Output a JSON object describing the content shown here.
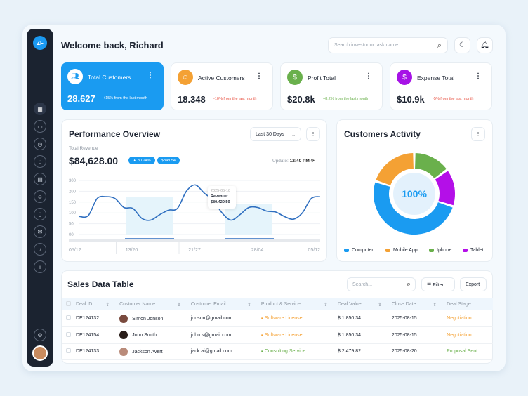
{
  "logo": "ZF",
  "header": {
    "title": "Welcome back, Richard",
    "search_placeholder": "Search investor or task name"
  },
  "sidebar": {
    "items": [
      "dashboard-icon",
      "wallet-icon",
      "clock-icon",
      "bag-icon",
      "calendar-icon",
      "users-icon",
      "document-icon",
      "mail-icon",
      "bell-icon",
      "info-icon"
    ],
    "settings": "gear-icon"
  },
  "cards": [
    {
      "label": "Total Customers",
      "value": "28.627",
      "change": "+15% from the last month",
      "color": "#1a9bf1",
      "icon": "users-icon"
    },
    {
      "label": "Active Customers",
      "value": "18.348",
      "change": "-10% from the last month",
      "color": "#f4a134",
      "icon": "user-check-icon"
    },
    {
      "label": "Profit Total",
      "value": "$20.8k",
      "change": "+8.2% from the last month",
      "color": "#6ab04c",
      "icon": "dollar-icon"
    },
    {
      "label": "Expense Total",
      "value": "$10.9k",
      "change": "-5% from the last month",
      "color": "#a612e6",
      "icon": "dollar-icon"
    }
  ],
  "performance": {
    "title": "Performance Overview",
    "range": "Last 30 Days",
    "subtitle": "Total Revenue",
    "total": "$84,628.00",
    "pct": "▲ 30.24%",
    "delta": "$849.54",
    "update_label": "Update:",
    "update_time": "12:40 PM",
    "tooltip": {
      "date": "2025-05-18",
      "label": "Revenue:",
      "value": "$80.420.50"
    }
  },
  "chart_data": {
    "type": "line",
    "x_ticks": [
      "05/12",
      "13/20",
      "21/27",
      "28/04",
      "05/12"
    ],
    "y_ticks": [
      "300",
      "200",
      "150",
      "100",
      "50",
      "00"
    ],
    "ylim": [
      0,
      300
    ],
    "values": [
      100,
      105,
      200,
      210,
      200,
      150,
      145,
      90,
      80,
      110,
      135,
      145,
      240,
      275,
      230,
      190,
      120,
      80,
      110,
      150,
      150,
      130,
      125,
      100,
      85,
      120,
      200,
      210
    ]
  },
  "activity": {
    "title": "Customers Activity",
    "center": "100%",
    "segments": [
      {
        "name": "Iphone",
        "value": 15,
        "color": "#6ab04c"
      },
      {
        "name": "Tablet",
        "value": 15,
        "color": "#b40fe8"
      },
      {
        "name": "Computer",
        "value": 50,
        "color": "#1a9bf1"
      },
      {
        "name": "Mobile App",
        "value": 20,
        "color": "#f4a134"
      }
    ],
    "legend": [
      "Computer",
      "Mobile App",
      "Iphone",
      "Tablet"
    ]
  },
  "sales": {
    "title": "Sales Data Table",
    "search_placeholder": "Search...",
    "filter": "Filter",
    "export": "Export",
    "columns": [
      "Deal ID",
      "Customer Name",
      "Customer Email",
      "Product & Service",
      "Deal Value",
      "Close Date",
      "Deal Stage"
    ],
    "rows": [
      [
        "DE124132",
        "Simon Jonson",
        "jonson@gmail.com",
        "Software License",
        "$ 1.850,34",
        "2025-08-15",
        "Negotiation"
      ],
      [
        "DE124154",
        "John Smith",
        "john.s@gmail.com",
        "Software License",
        "$ 1.850,34",
        "2025-08-15",
        "Negotiation"
      ],
      [
        "DE124133",
        "Jackson Avert",
        "jack.ai@gmail.com",
        "Consulting Service",
        "$ 2.479,82",
        "2025-08-20",
        "Proposal Sent"
      ]
    ]
  }
}
